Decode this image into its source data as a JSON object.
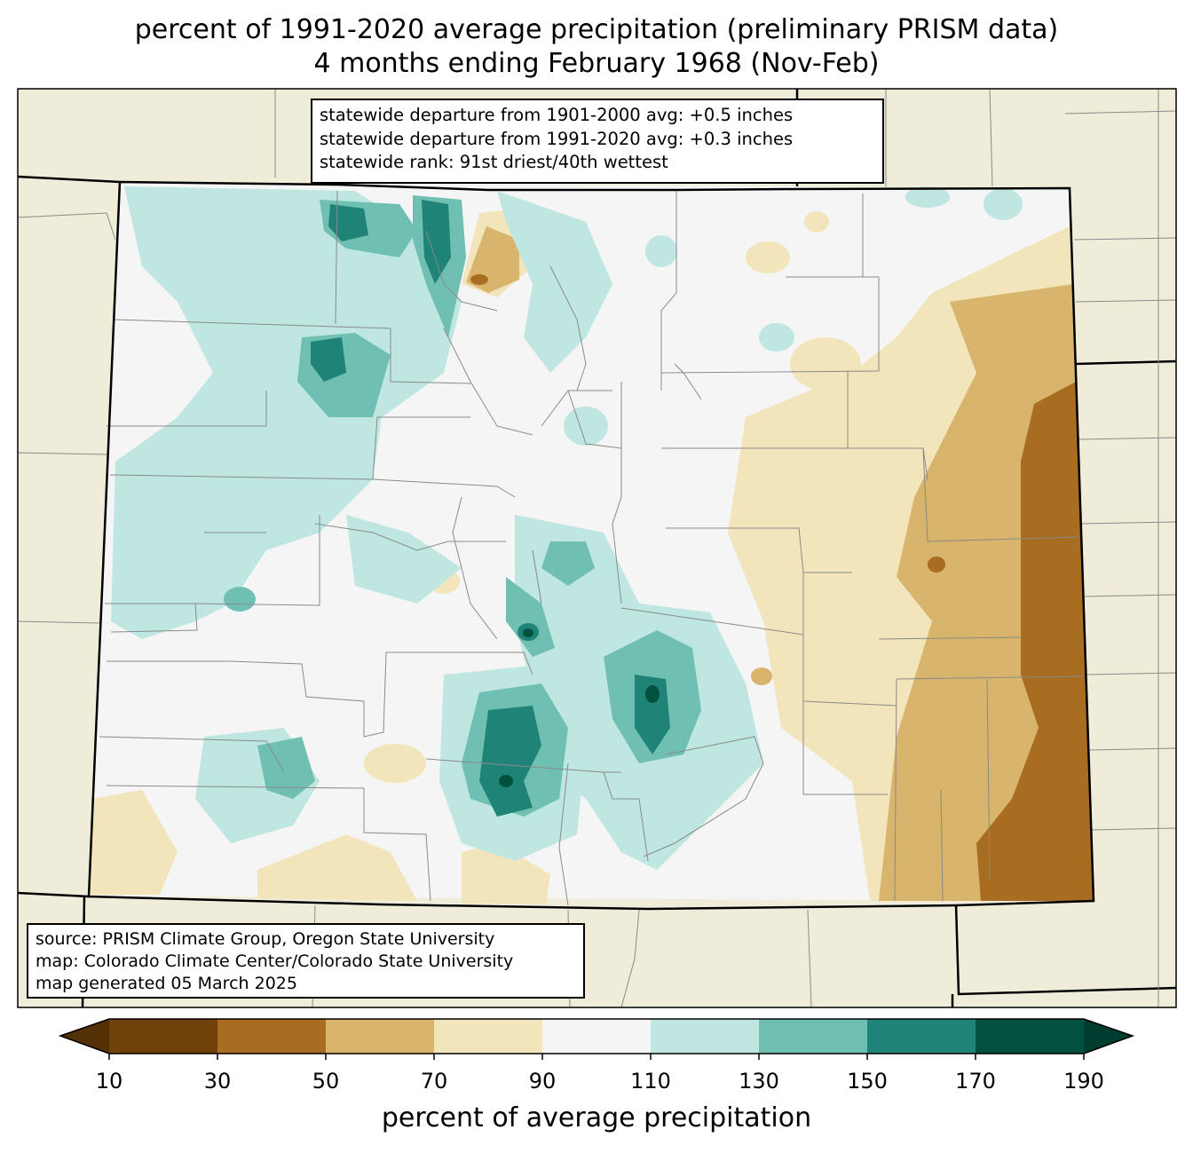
{
  "title": {
    "line1": "percent of 1991-2020 average precipitation (preliminary PRISM data)",
    "line2": "4 months ending February 1968 (Nov-Feb)"
  },
  "stats_box": {
    "line1": "statewide departure from 1901-2000 avg: +0.5 inches",
    "line2": "statewide departure from 1991-2020 avg: +0.3 inches",
    "line3": "statewide rank: 91st driest/40th wettest"
  },
  "source_box": {
    "line1": "source: PRISM Climate Group, Oregon State University",
    "line2": "map: Colorado Climate Center/Colorado State University",
    "line3": "map generated 05 March 2025"
  },
  "colorbar": {
    "label": "percent of average precipitation",
    "ticks": [
      "10",
      "30",
      "50",
      "70",
      "90",
      "110",
      "130",
      "150",
      "170",
      "190"
    ],
    "colors": [
      "#70410b",
      "#a96d22",
      "#d8b46c",
      "#f2e4bb",
      "#f4f5f4",
      "#bfe6e0",
      "#6fc0b2",
      "#208377",
      "#01513f"
    ],
    "under_color": "#543005",
    "over_color": "#003c30"
  },
  "map": {
    "neighbor_fill": "#efedda",
    "state_fill": "#f4f5f4"
  }
}
